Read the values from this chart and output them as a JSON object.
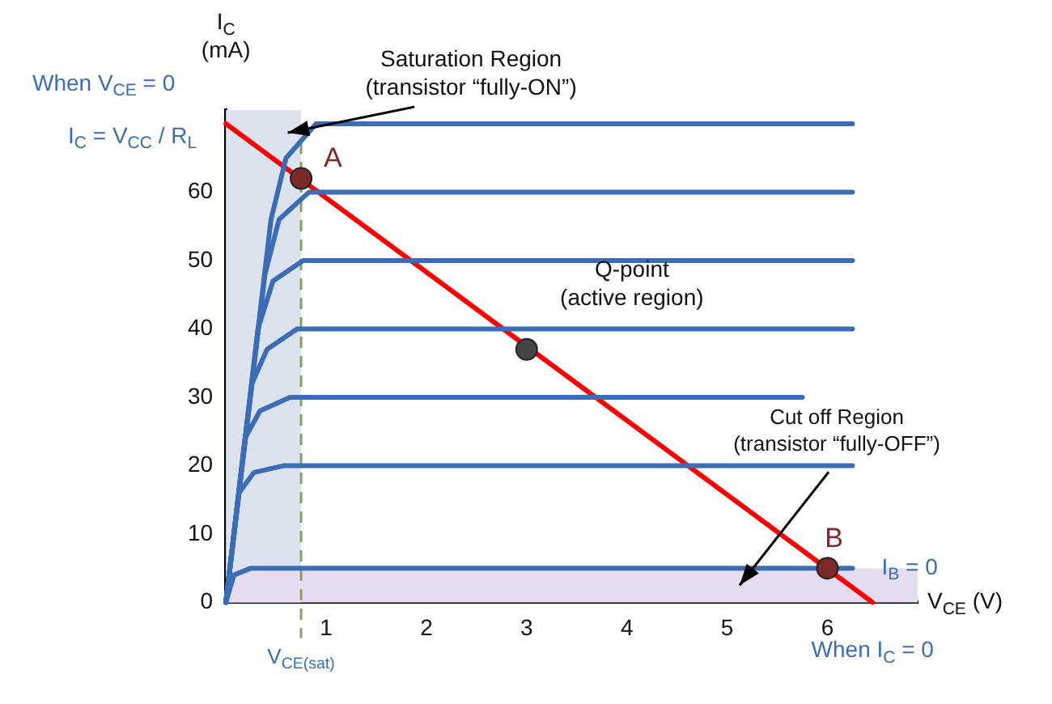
{
  "chart_data": {
    "type": "line",
    "xlabel": "V$_{CE}$ (V)",
    "ylabel": "I$_{C}$\n(mA)",
    "xlim": [
      0,
      6.9
    ],
    "xticks": [
      1,
      2,
      3,
      4,
      5,
      6
    ],
    "ylim": [
      0,
      72
    ],
    "yticks": [
      0,
      10,
      20,
      30,
      40,
      50,
      60
    ],
    "grid": false,
    "legend": false,
    "series": [
      {
        "color": "#3a6db5",
        "x": [
          0,
          0.45,
          0.6,
          0.9,
          6.25
        ],
        "values": [
          0,
          56,
          65,
          70,
          70
        ]
      },
      {
        "color": "#3a6db5",
        "x": [
          0,
          0.39,
          0.53,
          0.83,
          6.25
        ],
        "values": [
          0,
          48,
          56,
          60,
          60
        ]
      },
      {
        "color": "#3a6db5",
        "x": [
          0,
          0.32,
          0.47,
          0.77,
          6.25
        ],
        "values": [
          0,
          40,
          47,
          50,
          50
        ]
      },
      {
        "color": "#3a6db5",
        "x": [
          0,
          0.26,
          0.41,
          0.71,
          6.25
        ],
        "values": [
          0,
          32,
          37,
          40,
          40
        ]
      },
      {
        "color": "#3a6db5",
        "x": [
          0,
          0.19,
          0.34,
          0.64,
          5.75
        ],
        "values": [
          0,
          24,
          28,
          30,
          30
        ]
      },
      {
        "color": "#3a6db5",
        "x": [
          0,
          0.13,
          0.28,
          0.58,
          6.25
        ],
        "values": [
          0,
          16,
          19,
          20,
          20
        ]
      },
      {
        "color": "#3a6db5",
        "x": [
          0,
          0.08,
          0.25,
          6.25
        ],
        "values": [
          0,
          4,
          5,
          5
        ]
      },
      {
        "color": "#ff0000",
        "x": [
          0,
          6.45
        ],
        "values": [
          70,
          0
        ]
      },
      {
        "type": "scatter",
        "marker": "circle",
        "x": [
          0.75,
          3,
          6
        ],
        "values": [
          62,
          37,
          5
        ],
        "colors": [
          "#7b2a2a",
          "#444444",
          "#7b2a2a"
        ]
      }
    ],
    "bands": [
      {
        "axis": "x",
        "from": 0,
        "to": 0.75,
        "color": "#dde3ee",
        "label": "Saturation Region\n(transistor “fully-ON”)"
      },
      {
        "axis": "y",
        "from": 0,
        "to": 5,
        "color": "#e6dcf2",
        "label": "Cut off Region\n(transistor “fully-OFF”)"
      }
    ],
    "ref_lines": [
      {
        "axis": "x",
        "value": 0.75,
        "label": "V$_{CE(sat)}$",
        "color": "#8aa060",
        "line_style": "dashed"
      }
    ],
    "annotations": [
      "When V$_{CE}$ = 0",
      {
        "text": "I$_{C}$ = V$_{CC}$ / R$_{L}$",
        "x": 0,
        "y": 70
      },
      {
        "text": "A",
        "x": 0.75,
        "y": 62
      },
      {
        "text": "Q-point\n(active region)",
        "x": 3,
        "y": 37
      },
      {
        "text": "B",
        "x": 6,
        "y": 5
      },
      {
        "text": "I$_{B}$ = 0",
        "x": 6.25,
        "y": 5
      },
      {
        "text": "When I$_{C}$ = 0",
        "x": 6.45,
        "y": 0
      }
    ]
  }
}
